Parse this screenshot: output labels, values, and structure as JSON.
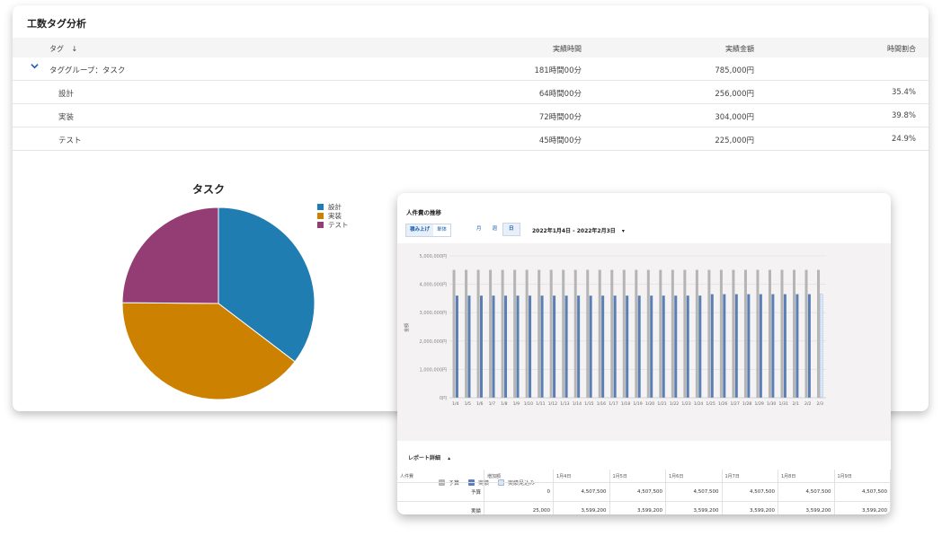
{
  "panel1": {
    "title": "工数タグ分析",
    "headers": {
      "tag": "タグ",
      "sort_icon": "↓",
      "hours": "実績時間",
      "amount": "実績金額",
      "ratio": "時間割合"
    },
    "group": {
      "label": "タググループ：タスク",
      "hours": "181時間00分",
      "amount": "785,000円",
      "chevron": "⌄"
    },
    "rows": [
      {
        "tag": "設計",
        "hours": "64時間00分",
        "amount": "256,000円",
        "ratio": "35.4%"
      },
      {
        "tag": "実装",
        "hours": "72時間00分",
        "amount": "304,000円",
        "ratio": "39.8%"
      },
      {
        "tag": "テスト",
        "hours": "45時間00分",
        "amount": "225,000円",
        "ratio": "24.9%"
      }
    ],
    "pie": {
      "title": "タスク",
      "legend": [
        "設計",
        "実装",
        "テスト"
      ],
      "colors": [
        "#1f7db1",
        "#cc8100",
        "#933d74"
      ]
    }
  },
  "panel2": {
    "title": "人件費の推移",
    "mode_buttons": [
      "積み上げ",
      "単体"
    ],
    "period_buttons": [
      "月",
      "週",
      "日"
    ],
    "date_range": "2022年1月4日 - 2022年2月3日",
    "dropdown_icon": "▾",
    "ylabel": "金額",
    "legend": [
      "予算",
      "実績",
      "実績見込み"
    ],
    "legend_colors": [
      "#b5b5b5",
      "#5b7fb5",
      "#d8e6f5"
    ],
    "report_label": "レポート詳細",
    "report_icon": "▴",
    "table": {
      "headers": [
        "人件費",
        "増加額",
        "1月4日",
        "1月5日",
        "1月6日",
        "1月7日",
        "1月8日",
        "1月9日"
      ],
      "rows": [
        [
          "予算",
          "0",
          "4,507,500",
          "4,507,500",
          "4,507,500",
          "4,507,500",
          "4,507,500",
          "4,507,500"
        ],
        [
          "実績",
          "25,000",
          "3,599,200",
          "3,599,200",
          "3,599,200",
          "3,599,200",
          "3,599,200",
          "3,599,200"
        ]
      ]
    }
  },
  "chart_data": [
    {
      "type": "pie",
      "title": "タスク",
      "categories": [
        "設計",
        "実装",
        "テスト"
      ],
      "values": [
        35.4,
        39.8,
        24.9
      ]
    },
    {
      "type": "bar",
      "title": "",
      "ylabel": "金額",
      "ylim": [
        0,
        5000000
      ],
      "yticks": [
        "0円",
        "1,000,000円",
        "2,000,000円",
        "3,000,000円",
        "4,000,000円",
        "5,000,000円"
      ],
      "categories": [
        "1/4",
        "1/5",
        "1/6",
        "1/7",
        "1/8",
        "1/9",
        "1/10",
        "1/11",
        "1/12",
        "1/13",
        "1/14",
        "1/15",
        "1/16",
        "1/17",
        "1/18",
        "1/19",
        "1/20",
        "1/21",
        "1/22",
        "1/23",
        "1/24",
        "1/25",
        "1/26",
        "1/27",
        "1/28",
        "1/29",
        "1/30",
        "1/31",
        "2/1",
        "2/2",
        "2/3"
      ],
      "series": [
        {
          "name": "予算",
          "values": [
            4507500,
            4507500,
            4507500,
            4507500,
            4507500,
            4507500,
            4507500,
            4507500,
            4507500,
            4507500,
            4507500,
            4507500,
            4507500,
            4507500,
            4507500,
            4507500,
            4507500,
            4507500,
            4507500,
            4507500,
            4507500,
            4507500,
            4507500,
            4507500,
            4507500,
            4507500,
            4507500,
            4507500,
            4507500,
            4507500,
            4507500
          ]
        },
        {
          "name": "実績",
          "values": [
            3599200,
            3599200,
            3599200,
            3599200,
            3599200,
            3599200,
            3599200,
            3599200,
            3599200,
            3599200,
            3599200,
            3599200,
            3599200,
            3599200,
            3599200,
            3599200,
            3599200,
            3599200,
            3599200,
            3599200,
            3599200,
            3650000,
            3650000,
            3650000,
            3650000,
            3650000,
            3650000,
            3650000,
            3650000,
            3650000,
            null
          ]
        },
        {
          "name": "実績見込み",
          "values": [
            null,
            null,
            null,
            null,
            null,
            null,
            null,
            null,
            null,
            null,
            null,
            null,
            null,
            null,
            null,
            null,
            null,
            null,
            null,
            null,
            null,
            null,
            null,
            null,
            null,
            null,
            null,
            null,
            null,
            null,
            3650000
          ]
        }
      ],
      "grid": true,
      "legend": "bottom"
    }
  ]
}
